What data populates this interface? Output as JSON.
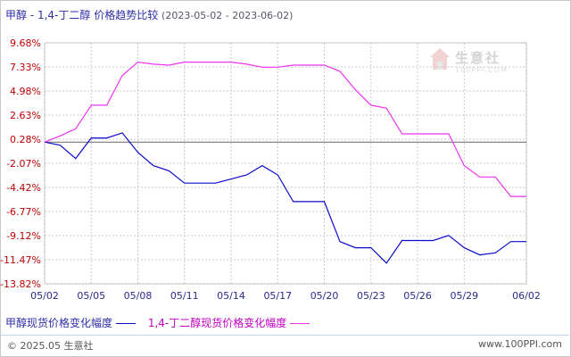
{
  "title": {
    "main": "甲醇 - 1,4-丁二醇 价格趋势比较",
    "range": "(2023-05-02 - 2023-06-02)"
  },
  "watermark": {
    "text": "生意社",
    "url": "100PPI.COM",
    "icon": "house-logo-icon"
  },
  "footer": {
    "copyright": "© 2025.05 生意社",
    "url": "www.100PPI.com"
  },
  "colors": {
    "series1": "#0a0acc",
    "series2": "#ee33ee",
    "grid": "#c8c8c8",
    "tick": "#c00000"
  },
  "chart_data": {
    "type": "line",
    "title": "甲醇 - 1,4-丁二醇 价格趋势比较",
    "xlabel": "",
    "ylabel": "",
    "y_tick_labels": [
      "9.68%",
      "7.33%",
      "4.98%",
      "2.63%",
      "0.28%",
      "-2.07%",
      "-4.42%",
      "-6.77%",
      "-9.12%",
      "-11.47%",
      "-13.82%"
    ],
    "y_ticks": [
      9.68,
      7.33,
      4.98,
      2.63,
      0.28,
      -2.07,
      -4.42,
      -6.77,
      -9.12,
      -11.47,
      -13.82
    ],
    "ylim": [
      -13.82,
      9.68
    ],
    "x_tick_labels": [
      "05/02",
      "05/05",
      "05/08",
      "05/11",
      "05/14",
      "05/17",
      "05/20",
      "05/23",
      "05/26",
      "05/29",
      "06/02"
    ],
    "x_tick_dates": [
      "2023-05-02",
      "2023-05-05",
      "2023-05-08",
      "2023-05-11",
      "2023-05-14",
      "2023-05-17",
      "2023-05-20",
      "2023-05-23",
      "2023-05-26",
      "2023-05-29",
      "2023-06-02"
    ],
    "xlim": [
      "2023-05-02",
      "2023-06-02"
    ],
    "baseline": 0,
    "grid": true,
    "legend_position": "bottom",
    "x": [
      "2023-05-02",
      "2023-05-03",
      "2023-05-04",
      "2023-05-05",
      "2023-05-06",
      "2023-05-07",
      "2023-05-08",
      "2023-05-09",
      "2023-05-10",
      "2023-05-11",
      "2023-05-12",
      "2023-05-13",
      "2023-05-14",
      "2023-05-15",
      "2023-05-16",
      "2023-05-17",
      "2023-05-18",
      "2023-05-19",
      "2023-05-20",
      "2023-05-21",
      "2023-05-22",
      "2023-05-23",
      "2023-05-24",
      "2023-05-25",
      "2023-05-26",
      "2023-05-27",
      "2023-05-28",
      "2023-05-29",
      "2023-05-30",
      "2023-05-31",
      "2023-06-01",
      "2023-06-02"
    ],
    "series": [
      {
        "name": "甲醇现货价格变化幅度",
        "color": "#0a0acc",
        "values": [
          0,
          -0.3,
          -1.6,
          0.4,
          0.4,
          0.9,
          -1.0,
          -2.3,
          -2.8,
          -4.0,
          -4.0,
          -4.0,
          -3.6,
          -3.2,
          -2.3,
          -3.2,
          -5.8,
          -5.8,
          -5.8,
          -9.7,
          -10.3,
          -10.3,
          -11.8,
          -9.6,
          -9.6,
          -9.6,
          -9.1,
          -10.3,
          -11.0,
          -10.8,
          -9.7,
          -9.7
        ]
      },
      {
        "name": "1,4-丁二醇现货价格变化幅度",
        "color": "#ee33ee",
        "values": [
          0,
          0.6,
          1.3,
          3.6,
          3.6,
          6.5,
          7.8,
          7.6,
          7.5,
          7.8,
          7.8,
          7.8,
          7.8,
          7.6,
          7.3,
          7.3,
          7.5,
          7.5,
          7.5,
          6.9,
          5.1,
          3.6,
          3.3,
          0.8,
          0.8,
          0.8,
          0.8,
          -2.3,
          -3.4,
          -3.4,
          -5.3,
          -5.3
        ]
      }
    ]
  }
}
